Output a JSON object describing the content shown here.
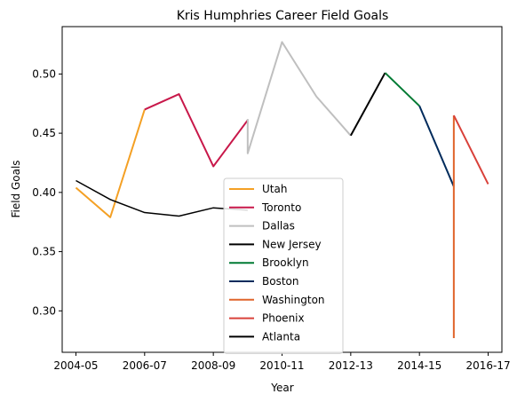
{
  "chart_data": {
    "type": "line",
    "title": "Kris Humphries Career Field Goals",
    "xlabel": "Year",
    "ylabel": "Field Goals",
    "x_tick_labels": [
      "2004-05",
      "2006-07",
      "2008-09",
      "2010-11",
      "2012-13",
      "2014-15",
      "2016-17"
    ],
    "y_tick_labels": [
      "0.30",
      "0.35",
      "0.40",
      "0.45",
      "0.50"
    ],
    "xlim": [
      -0.4,
      12.4
    ],
    "ylim": [
      0.265,
      0.54
    ],
    "grid": false,
    "legend_position": "lower center",
    "series": [
      {
        "name": "Utah",
        "color": "#f4a024",
        "width": 2,
        "x": [
          0,
          1,
          2
        ],
        "y": [
          0.404,
          0.379,
          0.47
        ]
      },
      {
        "name": "Toronto",
        "color": "#c8184a",
        "width": 2,
        "x": [
          2,
          3,
          4,
          5
        ],
        "y": [
          0.47,
          0.483,
          0.422,
          0.461
        ]
      },
      {
        "name": "Dallas",
        "color": "#bfbfbf",
        "width": 2,
        "x": [
          5,
          5,
          6,
          7,
          8
        ],
        "y": [
          0.462,
          0.433,
          0.527,
          0.481,
          0.448
        ]
      },
      {
        "name": "New Jersey",
        "color": "#000000",
        "width": 2,
        "x": [
          8,
          9
        ],
        "y": [
          0.448,
          0.501
        ]
      },
      {
        "name": "Brooklyn",
        "color": "#007a33",
        "width": 2,
        "x": [
          9,
          10
        ],
        "y": [
          0.501,
          0.473
        ]
      },
      {
        "name": "Boston",
        "color": "#002b5c",
        "width": 2,
        "x": [
          10,
          11
        ],
        "y": [
          0.473,
          0.405
        ]
      },
      {
        "name": "Washington",
        "color": "#e0642a",
        "width": 2,
        "x": [
          11,
          11
        ],
        "y": [
          0.465,
          0.277
        ]
      },
      {
        "name": "Phoenix",
        "color": "#d9413a",
        "width": 2,
        "x": [
          11,
          12
        ],
        "y": [
          0.465,
          0.407
        ]
      },
      {
        "name": "Atlanta",
        "color": "#000000",
        "width": 1.5,
        "x": [
          0,
          1,
          2,
          3,
          4,
          5
        ],
        "y": [
          0.41,
          0.394,
          0.383,
          0.38,
          0.387,
          0.385
        ]
      }
    ]
  }
}
